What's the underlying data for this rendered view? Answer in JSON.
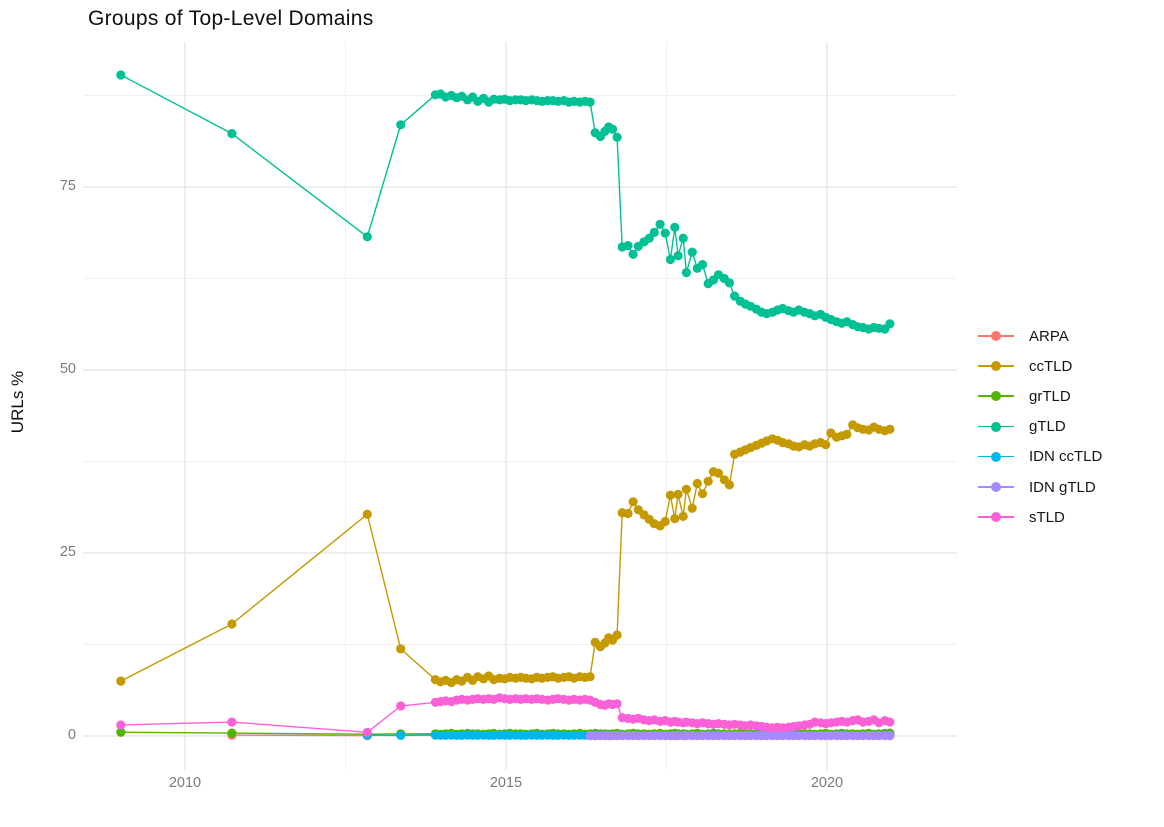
{
  "title": "Groups of Top-Level Domains",
  "ylabel": "URLs %",
  "chart_data": {
    "type": "line",
    "title": "Groups of Top-Level Domains",
    "xlabel": "",
    "ylabel": "URLs %",
    "xlim": [
      2008.5,
      2021.6
    ],
    "ylim": [
      0,
      94
    ],
    "grid": "on",
    "legend_position": "right",
    "x_ticks": {
      "values": [
        2010,
        2015,
        2020
      ],
      "labels": [
        "2010",
        "2015",
        "2020"
      ]
    },
    "x_minor": [
      2012.5,
      2017.5
    ],
    "y_ticks": {
      "values": [
        0,
        25,
        50,
        75
      ],
      "labels": [
        "0",
        "25",
        "50",
        "75"
      ]
    },
    "y_minor": [
      12.5,
      37.5,
      62.5,
      87.5
    ],
    "x_common": [
      2009,
      2010.73,
      2012.84,
      2013.36,
      2013.9,
      2013.98,
      2014.06,
      2014.15,
      2014.23,
      2014.31,
      2014.4,
      2014.48,
      2014.56,
      2014.65,
      2014.73,
      2014.81,
      2014.9,
      2014.98,
      2015.06,
      2015.15,
      2015.23,
      2015.31,
      2015.4,
      2015.48,
      2015.56,
      2015.65,
      2015.73,
      2015.81,
      2015.9,
      2015.98,
      2016.06,
      2016.15,
      2016.23,
      2016.31,
      2016.39,
      2016.47,
      2016.54,
      2016.6,
      2016.66,
      2016.73,
      2016.81,
      2016.9,
      2016.98,
      2017.06,
      2017.15,
      2017.23,
      2017.31,
      2017.4,
      2017.48,
      2017.56,
      2017.63,
      2017.68,
      2017.76,
      2017.81,
      2017.9,
      2017.98,
      2018.06,
      2018.15,
      2018.23,
      2018.31,
      2018.4,
      2018.48,
      2018.56,
      2018.65,
      2018.73,
      2018.81,
      2018.9,
      2018.98,
      2019.06,
      2019.15,
      2019.23,
      2019.31,
      2019.4,
      2019.48,
      2019.56,
      2019.65,
      2019.73,
      2019.81,
      2019.9,
      2019.98,
      2020.06,
      2020.15,
      2020.23,
      2020.31,
      2020.4,
      2020.48,
      2020.56,
      2020.65,
      2020.73,
      2020.81,
      2020.9,
      2020.98
    ],
    "series": [
      {
        "name": "ARPA",
        "color": "#F8766D",
        "x": [
          2010.73,
          2012.84
        ],
        "y": [
          0.12,
          0.06
        ]
      },
      {
        "name": "ccTLD",
        "color": "#C49A00",
        "y": [
          7.5,
          15.3,
          30.3,
          11.9,
          7.7,
          7.4,
          7.6,
          7.3,
          7.7,
          7.5,
          8.0,
          7.6,
          8.1,
          7.8,
          8.2,
          7.7,
          7.9,
          7.8,
          8.0,
          7.9,
          8.0,
          7.9,
          7.8,
          8.0,
          7.9,
          8.0,
          8.1,
          7.9,
          8.0,
          8.1,
          7.9,
          8.1,
          8.0,
          8.1,
          12.8,
          12.2,
          12.7,
          13.4,
          13.1,
          13.8,
          30.5,
          30.4,
          32.0,
          30.9,
          30.2,
          29.6,
          29.0,
          28.7,
          29.3,
          32.9,
          29.7,
          33.0,
          30.0,
          33.7,
          31.1,
          34.5,
          33.1,
          34.8,
          36.1,
          35.9,
          35.0,
          34.3,
          38.5,
          38.8,
          39.1,
          39.4,
          39.7,
          40.0,
          40.3,
          40.6,
          40.4,
          40.1,
          39.9,
          39.6,
          39.5,
          39.8,
          39.6,
          39.9,
          40.1,
          39.8,
          41.4,
          40.8,
          41.0,
          41.2,
          42.5,
          42.1,
          41.9,
          41.8,
          42.2,
          41.9,
          41.7,
          41.9
        ]
      },
      {
        "name": "grTLD",
        "color": "#53B400",
        "y": [
          0.5,
          0.4,
          0.25,
          0.3,
          0.3,
          0.25,
          0.3,
          0.35,
          0.25,
          0.3,
          0.35,
          0.3,
          0.3,
          0.25,
          0.3,
          0.35,
          0.25,
          0.3,
          0.35,
          0.3,
          0.3,
          0.25,
          0.3,
          0.35,
          0.25,
          0.3,
          0.35,
          0.3,
          0.3,
          0.25,
          0.3,
          0.35,
          0.25,
          0.3,
          0.35,
          0.3,
          0.3,
          0.25,
          0.3,
          0.35,
          0.25,
          0.3,
          0.35,
          0.3,
          0.3,
          0.25,
          0.3,
          0.35,
          0.25,
          0.3,
          0.35,
          0.3,
          0.3,
          0.25,
          0.3,
          0.35,
          0.25,
          0.3,
          0.35,
          0.3,
          0.3,
          0.25,
          0.3,
          0.35,
          0.25,
          0.3,
          0.35,
          0.3,
          0.3,
          0.25,
          0.3,
          0.35,
          0.25,
          0.3,
          0.35,
          0.3,
          0.3,
          0.25,
          0.3,
          0.35,
          0.25,
          0.3,
          0.35,
          0.3,
          0.3,
          0.25,
          0.3,
          0.35,
          0.25,
          0.3,
          0.35,
          0.4
        ]
      },
      {
        "name": "gTLD",
        "color": "#00C094",
        "y": [
          90.3,
          82.3,
          68.2,
          83.5,
          87.6,
          87.7,
          87.3,
          87.5,
          87.2,
          87.4,
          86.9,
          87.3,
          86.7,
          87.1,
          86.6,
          87.0,
          86.9,
          87.0,
          86.8,
          86.9,
          86.9,
          86.8,
          86.9,
          86.8,
          86.7,
          86.8,
          86.8,
          86.7,
          86.8,
          86.6,
          86.7,
          86.6,
          86.7,
          86.6,
          82.4,
          81.9,
          82.6,
          83.2,
          82.9,
          81.8,
          66.8,
          67.0,
          65.8,
          66.9,
          67.5,
          68.0,
          68.8,
          69.9,
          68.7,
          65.1,
          69.5,
          65.6,
          68.0,
          63.3,
          66.1,
          63.9,
          64.4,
          61.8,
          62.3,
          63.0,
          62.5,
          61.9,
          60.1,
          59.4,
          59.0,
          58.7,
          58.3,
          57.9,
          57.7,
          57.9,
          58.2,
          58.4,
          58.1,
          57.9,
          58.2,
          57.9,
          57.7,
          57.4,
          57.6,
          57.2,
          56.9,
          56.6,
          56.4,
          56.6,
          56.2,
          55.9,
          55.8,
          55.6,
          55.8,
          55.7,
          55.6,
          56.3
        ]
      },
      {
        "name": "IDN ccTLD",
        "color": "#00B6EB",
        "x_start_index": 2,
        "y": [
          0.1,
          0.08,
          0.12,
          0.1,
          0.09,
          0.11,
          0.1,
          0.08,
          0.12,
          0.1,
          0.09,
          0.11,
          0.1,
          0.08,
          0.12,
          0.1,
          0.09,
          0.11,
          0.1,
          0.08,
          0.12,
          0.1,
          0.09,
          0.11,
          0.1,
          0.08,
          0.12,
          0.1,
          0.09,
          0.11,
          0.1,
          0.08,
          0.12,
          0.1,
          0.09,
          0.11,
          0.1,
          0.08,
          0.12,
          0.1,
          0.09,
          0.11,
          0.1,
          0.08,
          0.12,
          0.1,
          0.09,
          0.11,
          0.1,
          0.08,
          0.12,
          0.1,
          0.09,
          0.11,
          0.1,
          0.08,
          0.12,
          0.1,
          0.09,
          0.11,
          0.1,
          0.08,
          0.12,
          0.1,
          0.09,
          0.11,
          0.1,
          0.08,
          0.12,
          0.1,
          0.09,
          0.11,
          0.1,
          0.08,
          0.12,
          0.1,
          0.09,
          0.11,
          0.1,
          0.08,
          0.12,
          0.1,
          0.09,
          0.11,
          0.1,
          0.08,
          0.12,
          0.1,
          0.09,
          0.11
        ]
      },
      {
        "name": "IDN gTLD",
        "color": "#A58AFF",
        "x_start_index": 33,
        "y": [
          0.05,
          0.04,
          0.06,
          0.05,
          0.03,
          0.05,
          0.05,
          0.04,
          0.06,
          0.05,
          0.03,
          0.05,
          0.05,
          0.04,
          0.06,
          0.05,
          0.03,
          0.05,
          0.05,
          0.04,
          0.06,
          0.05,
          0.03,
          0.05,
          0.05,
          0.04,
          0.06,
          0.05,
          0.03,
          0.05,
          0.05,
          0.04,
          0.06,
          0.05,
          0.03,
          0.05,
          0.05,
          0.04,
          0.06,
          0.05,
          0.03,
          0.05,
          0.05,
          0.04,
          0.06,
          0.05,
          0.03,
          0.05,
          0.05,
          0.04,
          0.06,
          0.05,
          0.03,
          0.05,
          0.05,
          0.04,
          0.06,
          0.05,
          0.05
        ]
      },
      {
        "name": "sTLD",
        "color": "#FB61D7",
        "y": [
          1.5,
          1.9,
          0.5,
          4.1,
          4.6,
          4.7,
          4.8,
          4.7,
          4.9,
          5.0,
          4.9,
          5.0,
          5.1,
          5.0,
          5.1,
          5.0,
          5.2,
          5.1,
          5.0,
          5.1,
          5.0,
          5.1,
          5.0,
          5.1,
          5.0,
          4.9,
          5.0,
          5.1,
          5.0,
          4.9,
          5.0,
          4.9,
          5.0,
          4.9,
          4.6,
          4.3,
          4.2,
          4.4,
          4.3,
          4.4,
          2.5,
          2.4,
          2.3,
          2.4,
          2.2,
          2.1,
          2.2,
          2.0,
          2.1,
          1.9,
          2.0,
          1.9,
          1.8,
          1.9,
          1.8,
          1.7,
          1.8,
          1.7,
          1.6,
          1.7,
          1.6,
          1.5,
          1.6,
          1.5,
          1.4,
          1.5,
          1.4,
          1.3,
          1.2,
          1.1,
          1.2,
          1.1,
          1.2,
          1.3,
          1.4,
          1.5,
          1.6,
          1.9,
          1.8,
          1.7,
          1.8,
          1.9,
          2.0,
          1.9,
          2.1,
          2.2,
          1.9,
          2.0,
          2.2,
          1.8,
          2.1,
          1.9
        ]
      }
    ]
  }
}
